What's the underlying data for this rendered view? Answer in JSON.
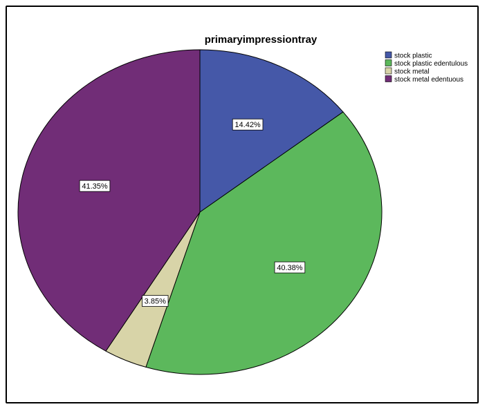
{
  "chart_data": {
    "type": "pie",
    "title": "primaryimpressiontray",
    "legend_position": "top-right",
    "start_angle_deg": 0,
    "direction": "clockwise",
    "slices": [
      {
        "label": "stock plastic",
        "value": 14.42,
        "display": "14.42%",
        "color": "#4558a8"
      },
      {
        "label": "stock plastic edentulous",
        "value": 40.38,
        "display": "40.38%",
        "color": "#5cb85c"
      },
      {
        "label": "stock metal",
        "value": 3.85,
        "display": "3.85%",
        "color": "#d8d4a8"
      },
      {
        "label": "stock metal edentuous",
        "value": 41.35,
        "display": "41.35%",
        "color": "#712d77"
      }
    ]
  }
}
